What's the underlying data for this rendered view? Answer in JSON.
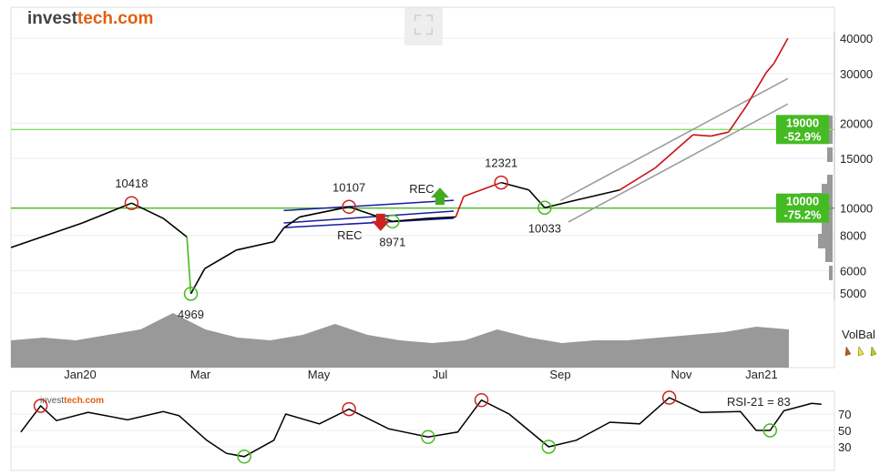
{
  "brand": {
    "name_a": "invest",
    "name_b": "tech.com"
  },
  "toolbar": {
    "expand_icon": "expand-icon"
  },
  "chart_data": [
    {
      "type": "line",
      "scale": "log",
      "ylim": [
        5000,
        40000
      ],
      "yticks": [
        5000,
        6000,
        8000,
        10000,
        15000,
        20000,
        30000,
        40000
      ],
      "xticks": [
        "Jan20",
        "Mar",
        "May",
        "Jul",
        "Sep",
        "Nov",
        "Jan21"
      ],
      "series": [
        {
          "points": [
            [
              "2019-11-27",
              7250
            ],
            [
              "2020-01-02",
              8850
            ],
            [
              "2020-01-27",
              10418
            ],
            [
              "2020-02-12",
              9200
            ],
            [
              "2020-02-24",
              7900
            ],
            [
              "2020-02-26",
              4969
            ],
            [
              "2020-03-04",
              6100
            ],
            [
              "2020-03-20",
              7100
            ],
            [
              "2020-04-08",
              7600
            ],
            [
              "2020-04-13",
              8500
            ],
            [
              "2020-04-21",
              9300
            ],
            [
              "2020-05-16",
              10107
            ],
            [
              "2020-06-02",
              9200
            ],
            [
              "2020-06-07",
              8971
            ],
            [
              "2020-06-25",
              9200
            ],
            [
              "2020-07-09",
              9300
            ],
            [
              "2020-07-13",
              11000
            ],
            [
              "2020-08-01",
              12321
            ],
            [
              "2020-08-15",
              11600
            ],
            [
              "2020-08-23",
              10033
            ],
            [
              "2020-09-11",
              10800
            ],
            [
              "2020-09-30",
              11600
            ],
            [
              "2020-10-18",
              13900
            ],
            [
              "2020-11-06",
              18200
            ],
            [
              "2020-11-15",
              18000
            ],
            [
              "2020-11-24",
              18600
            ],
            [
              "2020-12-03",
              23000
            ],
            [
              "2020-12-13",
              30200
            ],
            [
              "2020-12-17",
              32600
            ],
            [
              "2020-12-24",
              40000
            ]
          ]
        }
      ],
      "color_segments": [
        {
          "from": "2020-02-24",
          "to": "2020-02-26",
          "color": "#44bb22"
        },
        {
          "from": "2020-07-09",
          "to": "2020-08-10",
          "color": "#cc1111"
        },
        {
          "from": "2020-10-01",
          "to": "2020-12-24",
          "color": "#cc1111"
        }
      ],
      "peaks": [
        {
          "date": "2020-01-27",
          "value": 10418,
          "label": "10418"
        },
        {
          "date": "2020-05-16",
          "value": 10107,
          "label": "10107"
        },
        {
          "date": "2020-08-01",
          "value": 12321,
          "label": "12321"
        }
      ],
      "troughs": [
        {
          "date": "2020-02-26",
          "value": 4969,
          "label": "4969"
        },
        {
          "date": "2020-06-07",
          "value": 8971,
          "label": "8971"
        },
        {
          "date": "2020-08-23",
          "value": 10033,
          "label": "10033"
        }
      ],
      "signals": [
        {
          "date": "2020-07-01",
          "value": 10900,
          "label": "REC",
          "type": "buy",
          "color": "#44aa22"
        },
        {
          "date": "2020-06-01",
          "value": 9000,
          "label": "REC",
          "type": "sell",
          "color": "#cc2222"
        }
      ],
      "levels": [
        {
          "value": 19000,
          "label": "19000",
          "pct": "-52.9%",
          "color": "#88dd66"
        },
        {
          "value": 10000,
          "label": "10000",
          "pct": "-75.2%",
          "color": "#44bb22"
        }
      ],
      "trend_lines": [
        {
          "color": "#999",
          "from": [
            "2020-09-04",
            8930
          ],
          "to": [
            "2020-12-24",
            23400
          ]
        },
        {
          "color": "#999",
          "from": [
            "2020-08-31",
            10640
          ],
          "to": [
            "2020-12-24",
            28800
          ]
        },
        {
          "color": "#1a1aa0",
          "from": [
            "2020-04-13",
            9800
          ],
          "to": [
            "2020-07-08",
            10660
          ]
        },
        {
          "color": "#1a1aa0",
          "from": [
            "2020-04-13",
            8530
          ],
          "to": [
            "2020-07-08",
            9200
          ]
        },
        {
          "color": "#1a1aa0",
          "from": [
            "2020-04-13",
            8860
          ],
          "to": [
            "2020-07-08",
            9760
          ]
        }
      ],
      "volume_relative": [
        0.5,
        0.55,
        0.5,
        0.6,
        0.7,
        1.0,
        0.7,
        0.55,
        0.5,
        0.6,
        0.8,
        0.6,
        0.5,
        0.45,
        0.5,
        0.7,
        0.55,
        0.45,
        0.5,
        0.5,
        0.55,
        0.6,
        0.65,
        0.75,
        0.7
      ],
      "volbal_label": "VolBal",
      "volbal_colors": [
        "#cc5500",
        "#eeee00",
        "#aadd00"
      ]
    },
    {
      "type": "line",
      "title": "RSI-21 = 83",
      "ylim": [
        0,
        100
      ],
      "yticks": [
        30,
        50,
        70
      ],
      "series": [
        {
          "points": [
            [
              "2019-12-02",
              48
            ],
            [
              "2019-12-12",
              80
            ],
            [
              "2019-12-20",
              62
            ],
            [
              "2020-01-05",
              72
            ],
            [
              "2020-01-25",
              63
            ],
            [
              "2020-02-12",
              73
            ],
            [
              "2020-02-20",
              68
            ],
            [
              "2020-03-05",
              38
            ],
            [
              "2020-03-15",
              22
            ],
            [
              "2020-03-24",
              18
            ],
            [
              "2020-04-08",
              38
            ],
            [
              "2020-04-14",
              70
            ],
            [
              "2020-05-01",
              58
            ],
            [
              "2020-05-16",
              76
            ],
            [
              "2020-06-05",
              52
            ],
            [
              "2020-06-25",
              42
            ],
            [
              "2020-07-10",
              48
            ],
            [
              "2020-07-22",
              87
            ],
            [
              "2020-08-05",
              70
            ],
            [
              "2020-08-25",
              30
            ],
            [
              "2020-09-08",
              38
            ],
            [
              "2020-09-25",
              60
            ],
            [
              "2020-10-10",
              58
            ],
            [
              "2020-10-25",
              90
            ],
            [
              "2020-11-10",
              72
            ],
            [
              "2020-11-30",
              73
            ],
            [
              "2020-12-08",
              50
            ],
            [
              "2020-12-15",
              50
            ],
            [
              "2020-12-22",
              74
            ],
            [
              "2021-01-05",
              83
            ],
            [
              "2021-01-10",
              82
            ]
          ]
        }
      ],
      "peaks": [
        "2019-12-12",
        "2020-05-16",
        "2020-07-22",
        "2020-10-25"
      ],
      "troughs": [
        "2020-03-24",
        "2020-06-25",
        "2020-08-25",
        "2020-12-15"
      ]
    }
  ]
}
